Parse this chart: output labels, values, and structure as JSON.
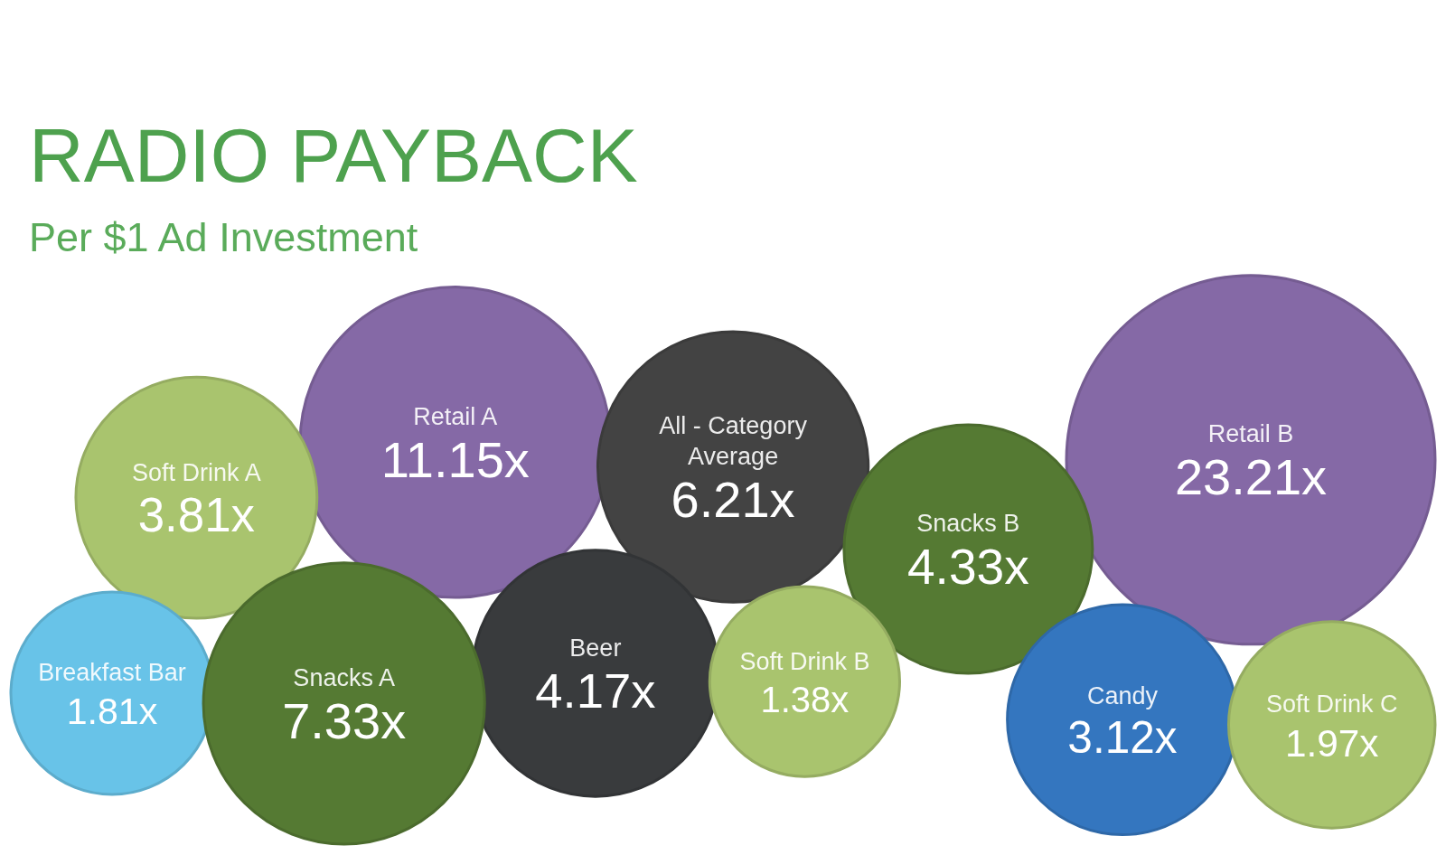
{
  "chart_data": {
    "type": "other",
    "title": "RADIO PAYBACK",
    "subtitle": "Per $1 Ad Investment",
    "categories": [
      "Breakfast Bar",
      "Soft Drink A",
      "Snacks A",
      "Retail A",
      "Beer",
      "All - Category Average",
      "Soft Drink B",
      "Snacks B",
      "Candy",
      "Retail B",
      "Soft Drink C"
    ],
    "values": [
      1.81,
      3.81,
      7.33,
      11.15,
      4.17,
      6.21,
      1.38,
      4.33,
      3.12,
      23.21,
      1.97
    ],
    "value_labels": [
      "1.81x",
      "3.81x",
      "7.33x",
      "11.15x",
      "4.17x",
      "6.21x",
      "1.38x",
      "4.33x",
      "3.12x",
      "23.21x",
      "1.97x"
    ],
    "colors": [
      "#68c3e8",
      "#a9c46e",
      "#557a33",
      "#8569a6",
      "#393b3d",
      "#434343",
      "#a9c46e",
      "#557a33",
      "#3476bf",
      "#8569a6",
      "#a9c46e"
    ]
  }
}
